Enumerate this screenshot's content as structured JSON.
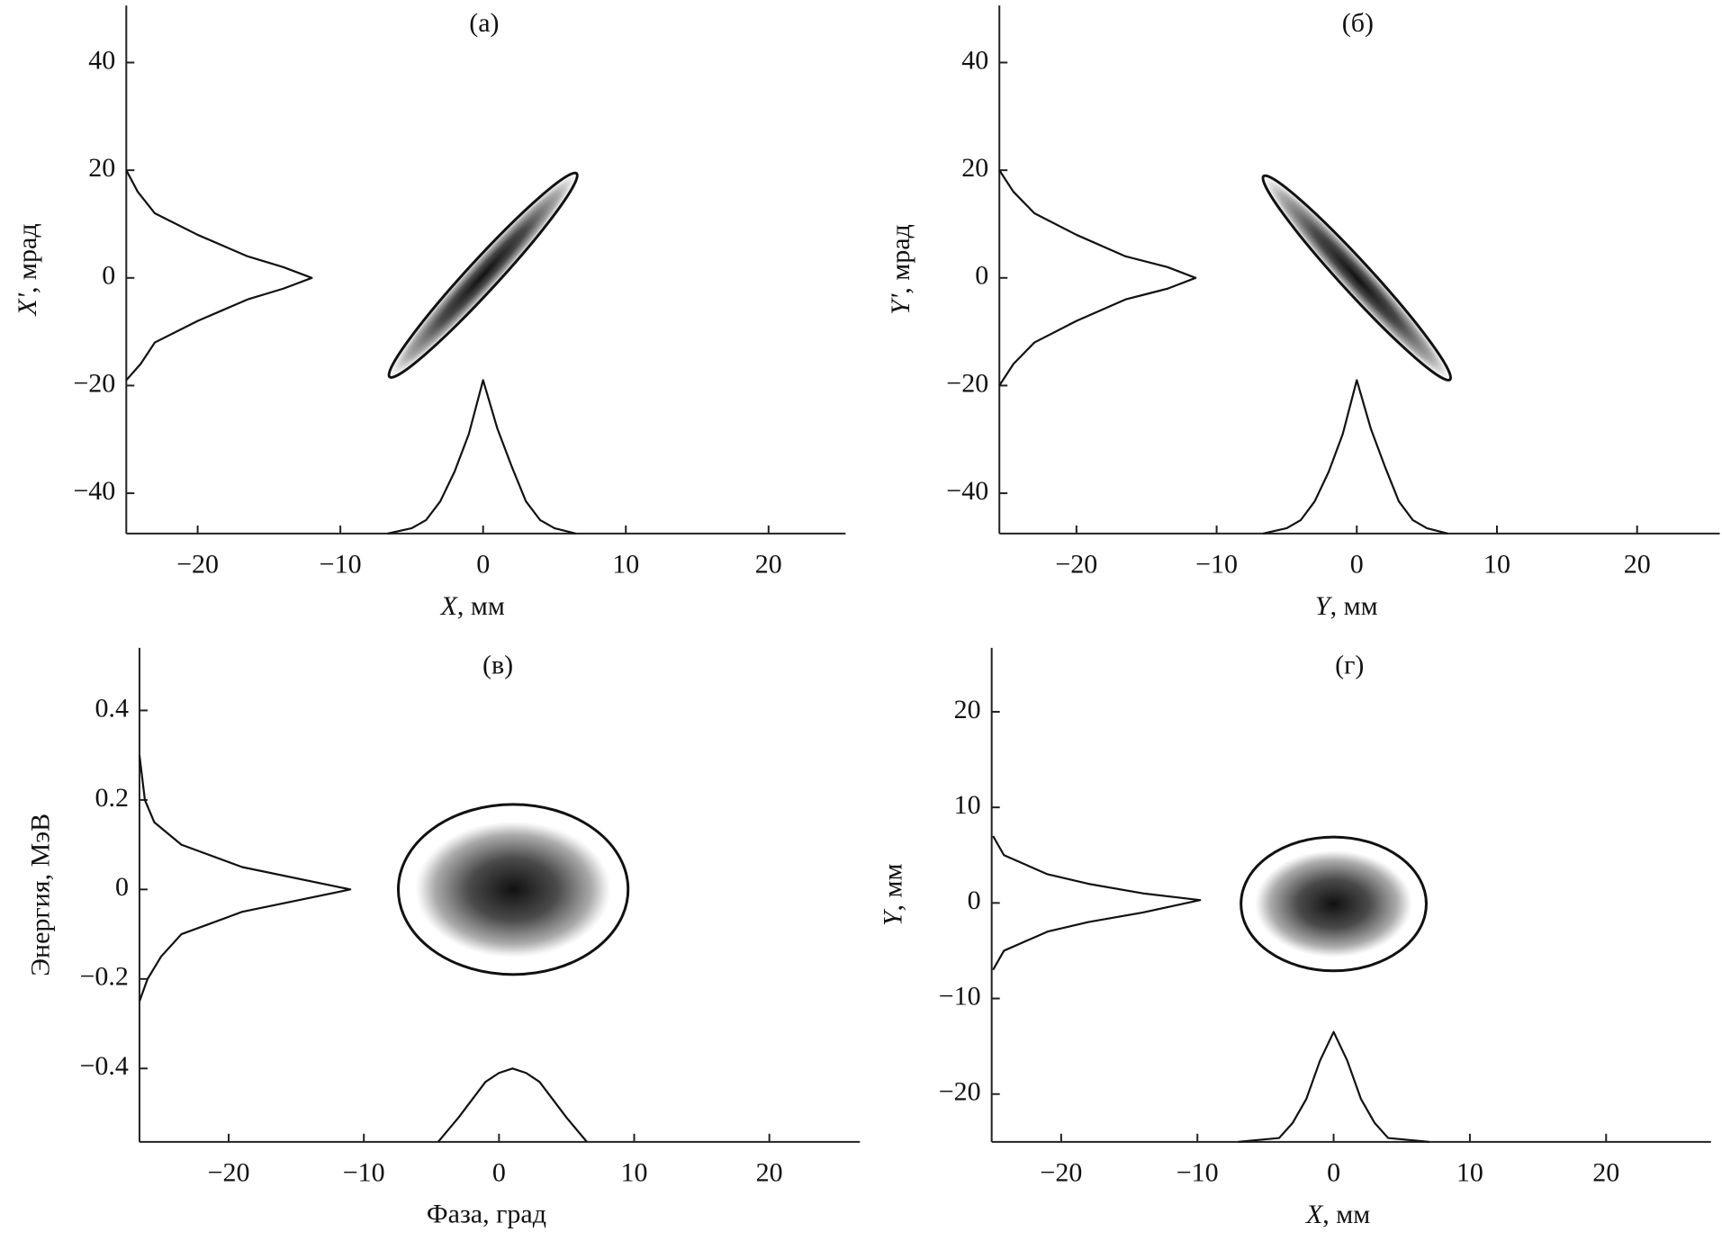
{
  "chart_data": [
    {
      "type": "phase",
      "title": "(а)",
      "xlabel": {
        "var": "X",
        "rest": ", мм"
      },
      "ylabel": {
        "var": "X'",
        "rest": ", мрад"
      },
      "xlim": [
        -25,
        25.4
      ],
      "ylim": [
        -47.5,
        50.6
      ],
      "xticks": [
        {
          "value": -20,
          "label": "−20"
        },
        {
          "value": -10,
          "label": "−10"
        },
        0,
        10,
        20
      ],
      "yticks": [
        {
          "value": -40,
          "label": "−40"
        },
        {
          "value": -20,
          "label": "−20"
        },
        0,
        20,
        40
      ],
      "ellipse": {
        "cx": 0,
        "cy": 0.5,
        "x_half": 6.6,
        "y_half": 19,
        "corr": 0.975
      },
      "left_profile": {
        "x": [
          -25,
          -24,
          -23,
          -20,
          -16.5,
          -14,
          -12,
          -14,
          -16.5,
          -20,
          -23,
          -24.2,
          -25
        ],
        "y": [
          -19,
          -16,
          -12,
          -8,
          -4,
          -2,
          0,
          2,
          4,
          8,
          12,
          16,
          20
        ]
      },
      "bottom_profile": {
        "x": [
          -6.7,
          -5,
          -4,
          -3,
          -2,
          -1,
          0,
          1,
          2,
          3,
          4,
          5,
          6.5
        ],
        "y": [
          -47.5,
          -46.5,
          -45,
          -41.5,
          -36,
          -29,
          -19,
          -28,
          -35,
          -41.5,
          -45,
          -46.5,
          -47.5
        ]
      }
    },
    {
      "type": "phase",
      "title": "(б)",
      "xlabel": {
        "var": "Y",
        "rest": ", мм"
      },
      "ylabel": {
        "var": "Y'",
        "rest": ", мрад"
      },
      "xlim": [
        -25.5,
        25.9
      ],
      "ylim": [
        -47.5,
        50.6
      ],
      "xticks": [
        {
          "value": -20,
          "label": "−20"
        },
        {
          "value": -10,
          "label": "−10"
        },
        0,
        10,
        20
      ],
      "yticks": [
        {
          "value": -40,
          "label": "−40"
        },
        {
          "value": -20,
          "label": "−20"
        },
        0,
        20,
        40
      ],
      "ellipse": {
        "cx": 0,
        "cy": 0,
        "x_half": 6.7,
        "y_half": 19,
        "corr": -0.975
      },
      "left_profile": {
        "x": [
          -25.5,
          -24.5,
          -23,
          -20,
          -16.5,
          -13.5,
          -11.5,
          -13.5,
          -16.5,
          -20,
          -23,
          -24.5,
          -25.5
        ],
        "y": [
          -20,
          -16,
          -12,
          -8,
          -4,
          -2,
          0,
          2,
          4,
          8,
          12,
          16,
          20
        ]
      },
      "bottom_profile": {
        "x": [
          -6.7,
          -5,
          -4,
          -3,
          -2,
          -1,
          0,
          1,
          2,
          3,
          4,
          5,
          6.5
        ],
        "y": [
          -47.5,
          -46.5,
          -45,
          -41.5,
          -36,
          -29,
          -19,
          -28,
          -35,
          -41.5,
          -45,
          -46.5,
          -47.5
        ]
      }
    },
    {
      "type": "phase",
      "title": "(в)",
      "xlabel": "Фаза, град",
      "ylabel": "Энергия, МэВ",
      "xlim": [
        -26.6,
        26.7
      ],
      "ylim": [
        -0.564,
        0.54
      ],
      "xticks": [
        {
          "value": -20,
          "label": "−20"
        },
        {
          "value": -10,
          "label": "−10"
        },
        0,
        10,
        20
      ],
      "yticks": [
        {
          "value": -0.4,
          "label": "−0.4"
        },
        {
          "value": -0.2,
          "label": "−0.2"
        },
        0,
        0.2,
        0.4
      ],
      "ellipse": {
        "cx": 1.05,
        "cy": 0,
        "x_half": 8.5,
        "y_half": 0.19,
        "corr": 0
      },
      "left_profile": {
        "x": [
          -26.6,
          -26,
          -25,
          -23.5,
          -19,
          -11,
          -19,
          -23.5,
          -25.5,
          -26.2,
          -26.6
        ],
        "y": [
          -0.25,
          -0.2,
          -0.15,
          -0.1,
          -0.05,
          0,
          0.05,
          0.1,
          0.15,
          0.2,
          0.3
        ]
      },
      "bottom_profile": {
        "x": [
          -4.5,
          -3,
          -2,
          -1,
          0,
          1,
          2,
          3,
          4,
          5,
          6.5
        ],
        "y": [
          -0.564,
          -0.51,
          -0.47,
          -0.43,
          -0.41,
          -0.4,
          -0.41,
          -0.43,
          -0.47,
          -0.51,
          -0.564
        ]
      }
    },
    {
      "type": "phase",
      "title": "(г)",
      "xlabel": {
        "var": "X",
        "rest": ", мм"
      },
      "ylabel": {
        "var": "Y",
        "rest": ", мм"
      },
      "xlim": [
        -25.1,
        27.7
      ],
      "ylim": [
        -25,
        26.7
      ],
      "xticks": [
        {
          "value": -20,
          "label": "−20"
        },
        {
          "value": -10,
          "label": "−10"
        },
        0,
        10,
        20
      ],
      "yticks": [
        {
          "value": -20,
          "label": "−20"
        },
        {
          "value": -10,
          "label": "−10"
        },
        0,
        10,
        20
      ],
      "ellipse": {
        "cx": 0,
        "cy": -0.1,
        "x_half": 6.8,
        "y_half": 7,
        "corr": 0
      },
      "left_profile": {
        "x": [
          -25,
          -24.2,
          -21,
          -18,
          -14,
          -9.8,
          -14,
          -18,
          -21,
          -24.2,
          -25
        ],
        "y": [
          -7,
          -5,
          -3,
          -2,
          -1,
          0.3,
          1,
          2,
          3,
          5,
          7
        ]
      },
      "bottom_profile": {
        "x": [
          -7,
          -4,
          -3,
          -2,
          -1,
          0,
          1,
          2,
          3,
          4,
          7
        ],
        "y": [
          -25,
          -24.6,
          -23,
          -20.5,
          -16.5,
          -13.5,
          -16.5,
          -20.5,
          -23,
          -24.6,
          -25
        ]
      }
    }
  ]
}
